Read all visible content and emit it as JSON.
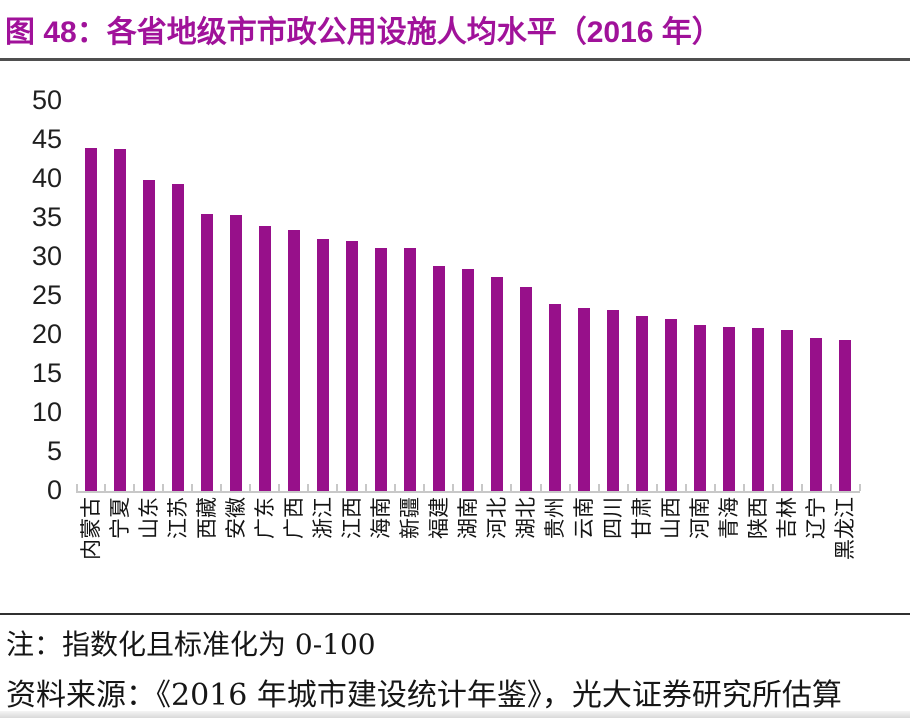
{
  "title": "图 48：各省地级市市政公用设施人均水平（2016 年）",
  "colors": {
    "accent_bar": "#97108A",
    "title_text": "#A0129A",
    "axis_line": "#C8C8C8",
    "rule_dark": "#4F4F4F"
  },
  "notes": {
    "note": "注：指数化且标准化为 0-100",
    "source": "资料来源：《2016 年城市建设统计年鉴》，光大证券研究所估算"
  },
  "chart_data": {
    "type": "bar",
    "title": "各省地级市市政公用设施人均水平（2016 年）",
    "categories": [
      "内蒙古",
      "宁夏",
      "山东",
      "江苏",
      "西藏",
      "安徽",
      "广东",
      "广西",
      "浙江",
      "江西",
      "海南",
      "新疆",
      "福建",
      "湖南",
      "河北",
      "湖北",
      "贵州",
      "云南",
      "四川",
      "甘肃",
      "山西",
      "河南",
      "青海",
      "陕西",
      "吉林",
      "辽宁",
      "黑龙江"
    ],
    "values": [
      44.0,
      43.9,
      39.9,
      39.4,
      35.5,
      35.4,
      34.0,
      33.5,
      32.3,
      32.0,
      31.2,
      31.1,
      28.8,
      28.4,
      27.4,
      26.1,
      24.0,
      23.4,
      23.2,
      22.4,
      22.1,
      21.3,
      21.0,
      20.9,
      20.6,
      19.6,
      19.3
    ],
    "xlabel": "",
    "ylabel": "",
    "ylim": [
      0,
      50
    ],
    "yticks": [
      0,
      5,
      10,
      15,
      20,
      25,
      30,
      35,
      40,
      45,
      50
    ],
    "grid": false,
    "legend": null,
    "bar_color": "#97108A"
  }
}
